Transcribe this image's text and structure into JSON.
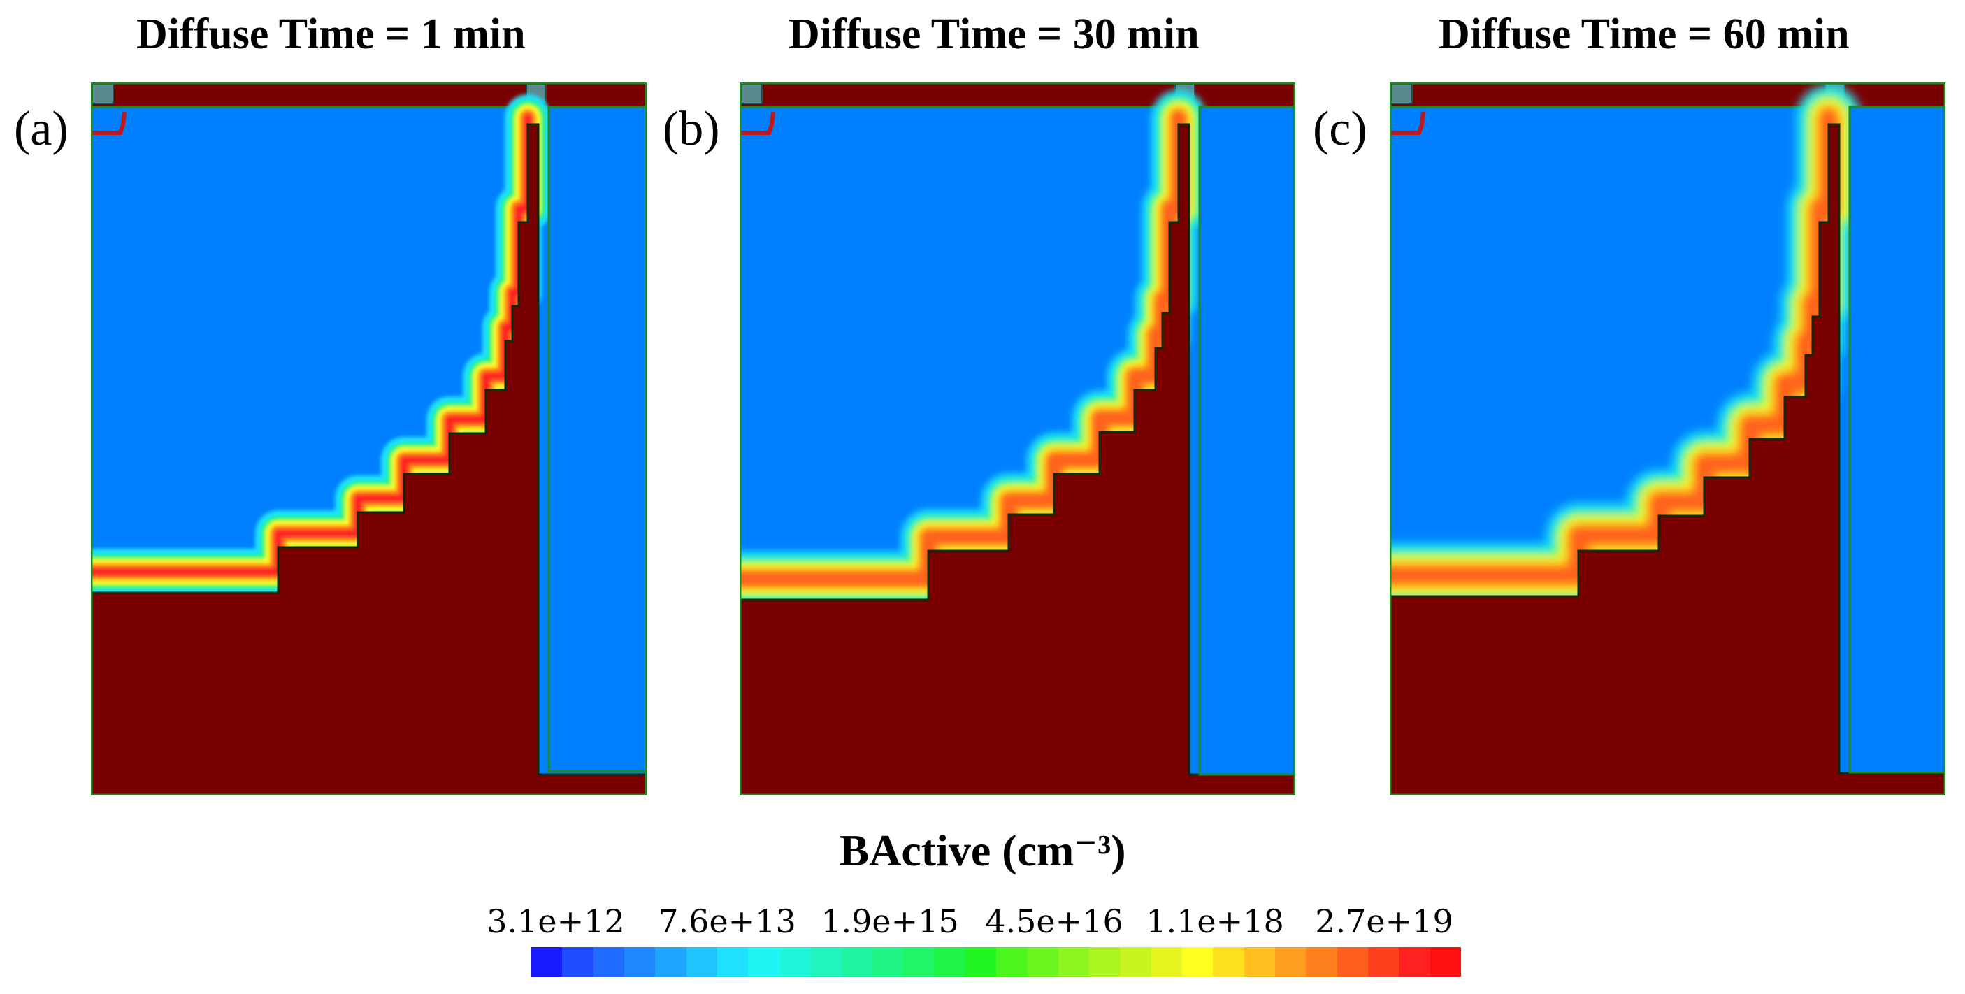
{
  "panels": [
    {
      "label": "(a)",
      "title": "Diffuse Time = 1 min"
    },
    {
      "label": "(b)",
      "title": "Diffuse Time = 30 min"
    },
    {
      "label": "(c)",
      "title": "Diffuse Time = 60 min"
    }
  ],
  "colorbar": {
    "title": "BActive (cm⁻³)",
    "ticks": [
      "3.1e+12",
      "7.6e+13",
      "1.9e+15",
      "4.5e+16",
      "1.1e+18",
      "2.7e+19"
    ],
    "colors": [
      "#1a1aff",
      "#1f4dff",
      "#1f6bff",
      "#1f88ff",
      "#1fa6ff",
      "#1fc4ff",
      "#1fe0ff",
      "#1ff5f5",
      "#1ff5d9",
      "#1ff5bd",
      "#1ff5a0",
      "#1ff584",
      "#1ff566",
      "#1ff546",
      "#20f520",
      "#4df51f",
      "#6bf51f",
      "#8cf51f",
      "#aaf51f",
      "#c8f51f",
      "#e6f51f",
      "#ffff1f",
      "#ffe01f",
      "#ffbf1f",
      "#ff9f1f",
      "#ff801f",
      "#ff601f",
      "#ff401f",
      "#ff2020",
      "#ff1010"
    ],
    "colors_semantic": {
      "background_region": "#0080ff",
      "high_region": "#7a0000"
    }
  }
}
